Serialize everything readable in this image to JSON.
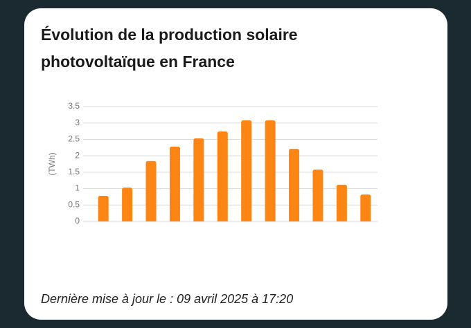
{
  "chart_data": {
    "type": "bar",
    "title_lines": [
      "Évolution de la production solaire",
      "photovoltaïque en France"
    ],
    "y_label": "(TWh)",
    "values": [
      0.78,
      1.03,
      1.84,
      2.28,
      2.53,
      2.74,
      3.08,
      3.08,
      2.21,
      1.58,
      1.12,
      0.82
    ],
    "color": "#fd8513",
    "ylim": [
      0,
      3.5
    ],
    "yticks": [
      0,
      0.5,
      1,
      1.5,
      2,
      2.5,
      3,
      3.5
    ],
    "grid": true,
    "footer": "Dernière mise à jour le : 09 avril 2025 à 17:20"
  }
}
